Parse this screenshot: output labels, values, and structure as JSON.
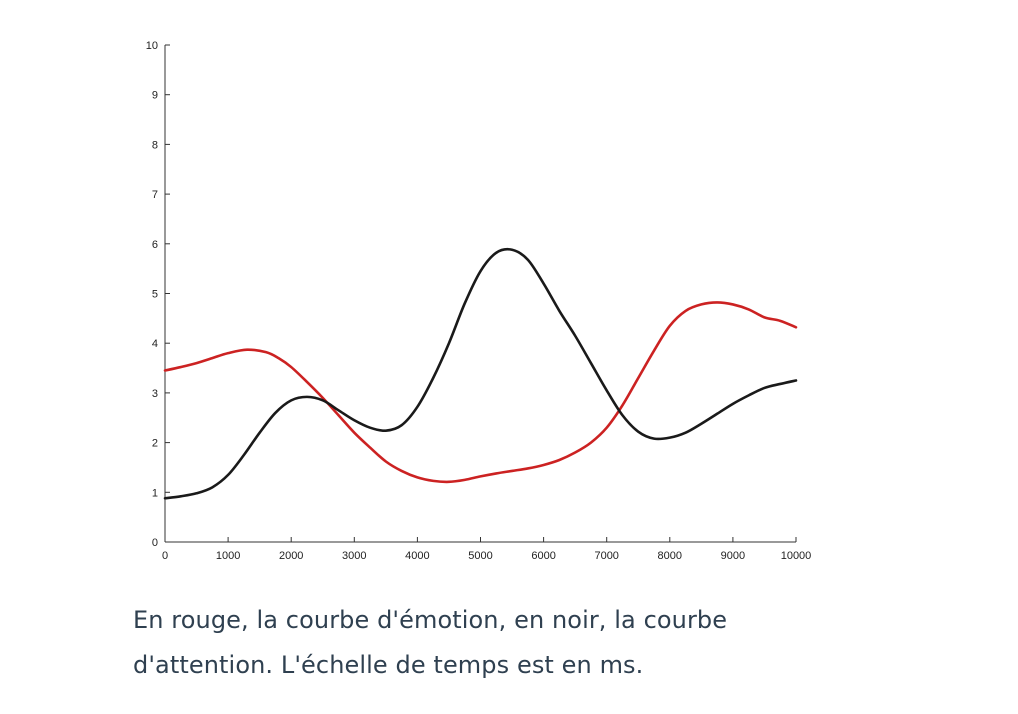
{
  "chart_data": {
    "type": "line",
    "title": "",
    "xlabel": "",
    "ylabel": "",
    "xlim": [
      0,
      10000
    ],
    "ylim": [
      0,
      10
    ],
    "x_ticks": [
      0,
      1000,
      2000,
      3000,
      4000,
      5000,
      6000,
      7000,
      8000,
      9000,
      10000
    ],
    "y_ticks": [
      0,
      1,
      2,
      3,
      4,
      5,
      6,
      7,
      8,
      9,
      10
    ],
    "grid": false,
    "legend": "none",
    "series": [
      {
        "color": "#cc2222",
        "points": [
          [
            0,
            3.45
          ],
          [
            250,
            3.52
          ],
          [
            500,
            3.6
          ],
          [
            750,
            3.7
          ],
          [
            1000,
            3.8
          ],
          [
            1300,
            3.87
          ],
          [
            1600,
            3.82
          ],
          [
            1800,
            3.7
          ],
          [
            2000,
            3.52
          ],
          [
            2250,
            3.22
          ],
          [
            2500,
            2.9
          ],
          [
            2750,
            2.55
          ],
          [
            3000,
            2.2
          ],
          [
            3250,
            1.9
          ],
          [
            3500,
            1.62
          ],
          [
            3750,
            1.43
          ],
          [
            4000,
            1.3
          ],
          [
            4250,
            1.23
          ],
          [
            4500,
            1.21
          ],
          [
            4750,
            1.25
          ],
          [
            5000,
            1.32
          ],
          [
            5250,
            1.38
          ],
          [
            5500,
            1.43
          ],
          [
            5750,
            1.48
          ],
          [
            6000,
            1.55
          ],
          [
            6250,
            1.65
          ],
          [
            6500,
            1.8
          ],
          [
            6750,
            2.0
          ],
          [
            7000,
            2.3
          ],
          [
            7250,
            2.75
          ],
          [
            7500,
            3.3
          ],
          [
            7750,
            3.85
          ],
          [
            8000,
            4.35
          ],
          [
            8250,
            4.65
          ],
          [
            8500,
            4.78
          ],
          [
            8750,
            4.82
          ],
          [
            9000,
            4.78
          ],
          [
            9250,
            4.68
          ],
          [
            9500,
            4.52
          ],
          [
            9750,
            4.45
          ],
          [
            10000,
            4.32
          ]
        ]
      },
      {
        "color": "#1a1a1a",
        "points": [
          [
            0,
            0.88
          ],
          [
            250,
            0.92
          ],
          [
            500,
            0.98
          ],
          [
            750,
            1.1
          ],
          [
            1000,
            1.35
          ],
          [
            1250,
            1.75
          ],
          [
            1500,
            2.2
          ],
          [
            1750,
            2.6
          ],
          [
            2000,
            2.85
          ],
          [
            2250,
            2.92
          ],
          [
            2500,
            2.85
          ],
          [
            2750,
            2.65
          ],
          [
            3000,
            2.45
          ],
          [
            3250,
            2.3
          ],
          [
            3500,
            2.24
          ],
          [
            3750,
            2.35
          ],
          [
            4000,
            2.72
          ],
          [
            4250,
            3.3
          ],
          [
            4500,
            4.0
          ],
          [
            4750,
            4.8
          ],
          [
            5000,
            5.45
          ],
          [
            5250,
            5.82
          ],
          [
            5500,
            5.88
          ],
          [
            5750,
            5.68
          ],
          [
            6000,
            5.2
          ],
          [
            6250,
            4.65
          ],
          [
            6500,
            4.15
          ],
          [
            6750,
            3.6
          ],
          [
            7000,
            3.05
          ],
          [
            7250,
            2.55
          ],
          [
            7500,
            2.22
          ],
          [
            7750,
            2.08
          ],
          [
            8000,
            2.1
          ],
          [
            8250,
            2.2
          ],
          [
            8500,
            2.38
          ],
          [
            8750,
            2.58
          ],
          [
            9000,
            2.78
          ],
          [
            9250,
            2.95
          ],
          [
            9500,
            3.1
          ],
          [
            9750,
            3.18
          ],
          [
            10000,
            3.25
          ]
        ]
      }
    ]
  },
  "caption": {
    "line1": "En rouge, la courbe d'émotion, en noir, la courbe",
    "line2": "d'attention. L'échelle de temps est en ms."
  }
}
